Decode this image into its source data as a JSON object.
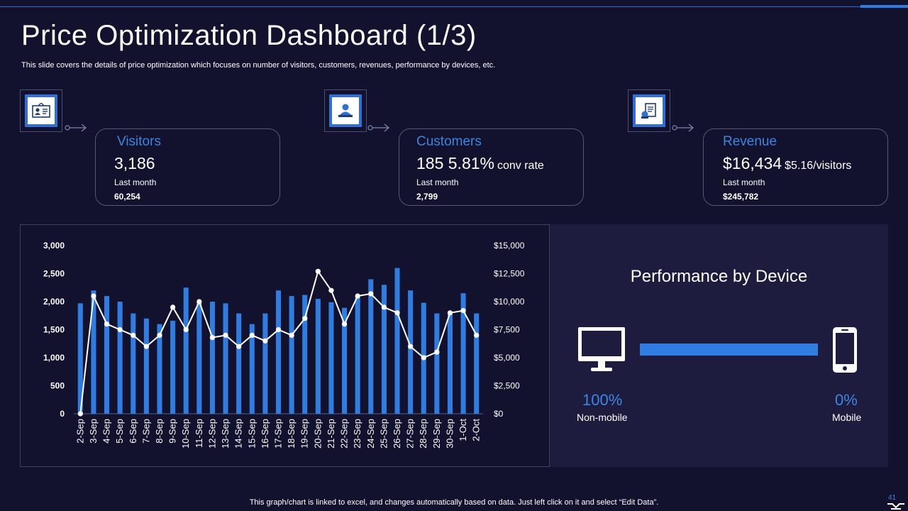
{
  "slide": {
    "title": "Price Optimization Dashboard (1/3)",
    "subtitle": "This slide covers the details of price optimization which focuses on number of visitors, customers, revenues, performance by devices, etc.",
    "footer": "This graph/chart is linked to excel,  and changes automatically based on data. Just left click on it and select “Edit Data”.",
    "page_number": "41"
  },
  "kpis": {
    "visitors": {
      "label": "Visitors",
      "value": "3,186",
      "last_label": "Last month",
      "last_value": "60,254",
      "icon": "id-card-icon"
    },
    "customers": {
      "label": "Customers",
      "value": "185 5.81%",
      "sub": "conv rate",
      "last_label": "Last month",
      "last_value": "2,799",
      "icon": "customer-icon"
    },
    "revenue": {
      "label": "Revenue",
      "value": "$16,434",
      "sub": "$5.16/visitors",
      "last_label": "Last month",
      "last_value": "$245,782",
      "icon": "invoice-icon"
    }
  },
  "device": {
    "title": "Performance by Device",
    "non_mobile_pct": "100%",
    "non_mobile_label": "Non-mobile",
    "mobile_pct": "0%",
    "mobile_label": "Mobile",
    "non_mobile_share": 1.0
  },
  "colors": {
    "background": "#12112e",
    "accent": "#2f7de0",
    "panel": "#1d1c3e",
    "line": "#ffffff"
  },
  "chart_data": {
    "type": "bar",
    "categories": [
      "2-Sep",
      "3-Sep",
      "4-Sep",
      "5-Sep",
      "6-Sep",
      "7-Sep",
      "8-Sep",
      "9-Sep",
      "10-Sep",
      "11-Sep",
      "12-Sep",
      "13-Sep",
      "14-Sep",
      "15-Sep",
      "16-Sep",
      "17-Sep",
      "18-Sep",
      "19-Sep",
      "20-Sep",
      "21-Sep",
      "22-Sep",
      "23-Sep",
      "24-Sep",
      "25-Sep",
      "26-Sep",
      "27-Sep",
      "28-Sep",
      "29-Sep",
      "30-Sep",
      "1-Oct",
      "2-Oct"
    ],
    "series": [
      {
        "name": "Visitors",
        "type": "bar",
        "axis": "left",
        "values": [
          1970,
          2200,
          2100,
          2000,
          1790,
          1700,
          1600,
          1660,
          2250,
          1990,
          2000,
          1970,
          1790,
          1600,
          1790,
          2200,
          2100,
          2120,
          2050,
          1990,
          1890,
          2080,
          2400,
          2300,
          2600,
          2200,
          1980,
          1790,
          1790,
          2150,
          1790
        ]
      },
      {
        "name": "Revenue",
        "type": "line",
        "axis": "right",
        "values": [
          0,
          10500,
          8000,
          7500,
          7000,
          6000,
          7000,
          9500,
          7500,
          10000,
          6800,
          7000,
          6000,
          7000,
          6500,
          7500,
          7000,
          8500,
          12700,
          11000,
          8000,
          10500,
          10700,
          9500,
          9000,
          6000,
          5000,
          5500,
          9000,
          9200,
          7000
        ]
      }
    ],
    "y_left": {
      "min": 0,
      "max": 3000,
      "ticks": [
        "0",
        "500",
        "1,000",
        "1,500",
        "2,000",
        "2,500",
        "3,000"
      ]
    },
    "y_right": {
      "min": 0,
      "max": 15000,
      "ticks": [
        "$0",
        "$2,500",
        "$5,000",
        "$7,500",
        "$10,000",
        "$12,500",
        "$15,000"
      ]
    },
    "title": "",
    "xlabel": "",
    "ylabel": ""
  }
}
